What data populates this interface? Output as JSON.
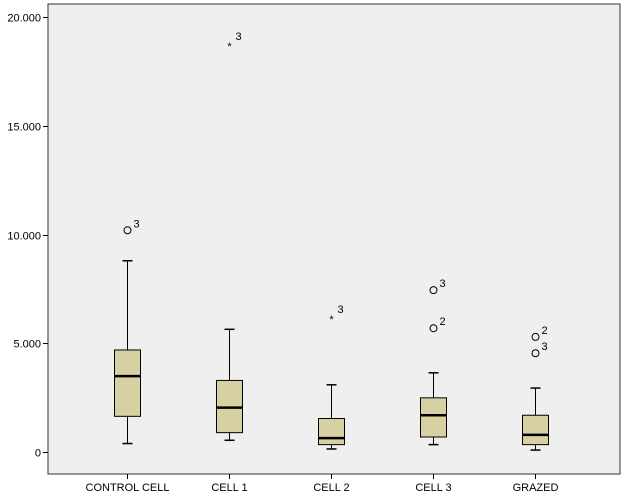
{
  "chart_data": {
    "type": "boxplot",
    "title": "",
    "xlabel": "",
    "ylabel": "",
    "ylim": [
      -1.0,
      20.6
    ],
    "yticks": [
      0,
      5,
      10,
      15,
      20
    ],
    "ytick_labels": [
      "0",
      "5.000",
      "10.000",
      "15.000",
      "20.000"
    ],
    "grid": false,
    "colors": {
      "plot_bg": "#efefef",
      "box_fill": "#d7d0a2",
      "stroke": "#000000",
      "frame": "#333333"
    },
    "categories": [
      "CONTROL CELL",
      "CELL 1",
      "CELL 2",
      "CELL 3",
      "GRAZED"
    ],
    "boxes": [
      {
        "label": "CONTROL CELL",
        "whisker_low": 0.4,
        "q1": 1.65,
        "median": 3.5,
        "q3": 4.7,
        "whisker_high": 8.8,
        "outliers": [
          {
            "value": 10.2,
            "marker": "circle",
            "label": "3"
          }
        ]
      },
      {
        "label": "CELL 1",
        "whisker_low": 0.55,
        "q1": 0.9,
        "median": 2.05,
        "q3": 3.3,
        "whisker_high": 5.65,
        "outliers": [
          {
            "value": 18.8,
            "marker": "star",
            "label": "3"
          }
        ]
      },
      {
        "label": "CELL 2",
        "whisker_low": 0.15,
        "q1": 0.35,
        "median": 0.65,
        "q3": 1.55,
        "whisker_high": 3.1,
        "outliers": [
          {
            "value": 6.25,
            "marker": "star",
            "label": "3"
          }
        ]
      },
      {
        "label": "CELL 3",
        "whisker_low": 0.35,
        "q1": 0.7,
        "median": 1.7,
        "q3": 2.5,
        "whisker_high": 3.65,
        "outliers": [
          {
            "value": 7.45,
            "marker": "circle",
            "label": "3"
          },
          {
            "value": 5.7,
            "marker": "circle",
            "label": "2"
          }
        ]
      },
      {
        "label": "GRAZED",
        "whisker_low": 0.1,
        "q1": 0.35,
        "median": 0.8,
        "q3": 1.7,
        "whisker_high": 2.95,
        "outliers": [
          {
            "value": 5.3,
            "marker": "circle",
            "label": "2"
          },
          {
            "value": 4.55,
            "marker": "circle",
            "label": "3"
          }
        ]
      }
    ]
  }
}
